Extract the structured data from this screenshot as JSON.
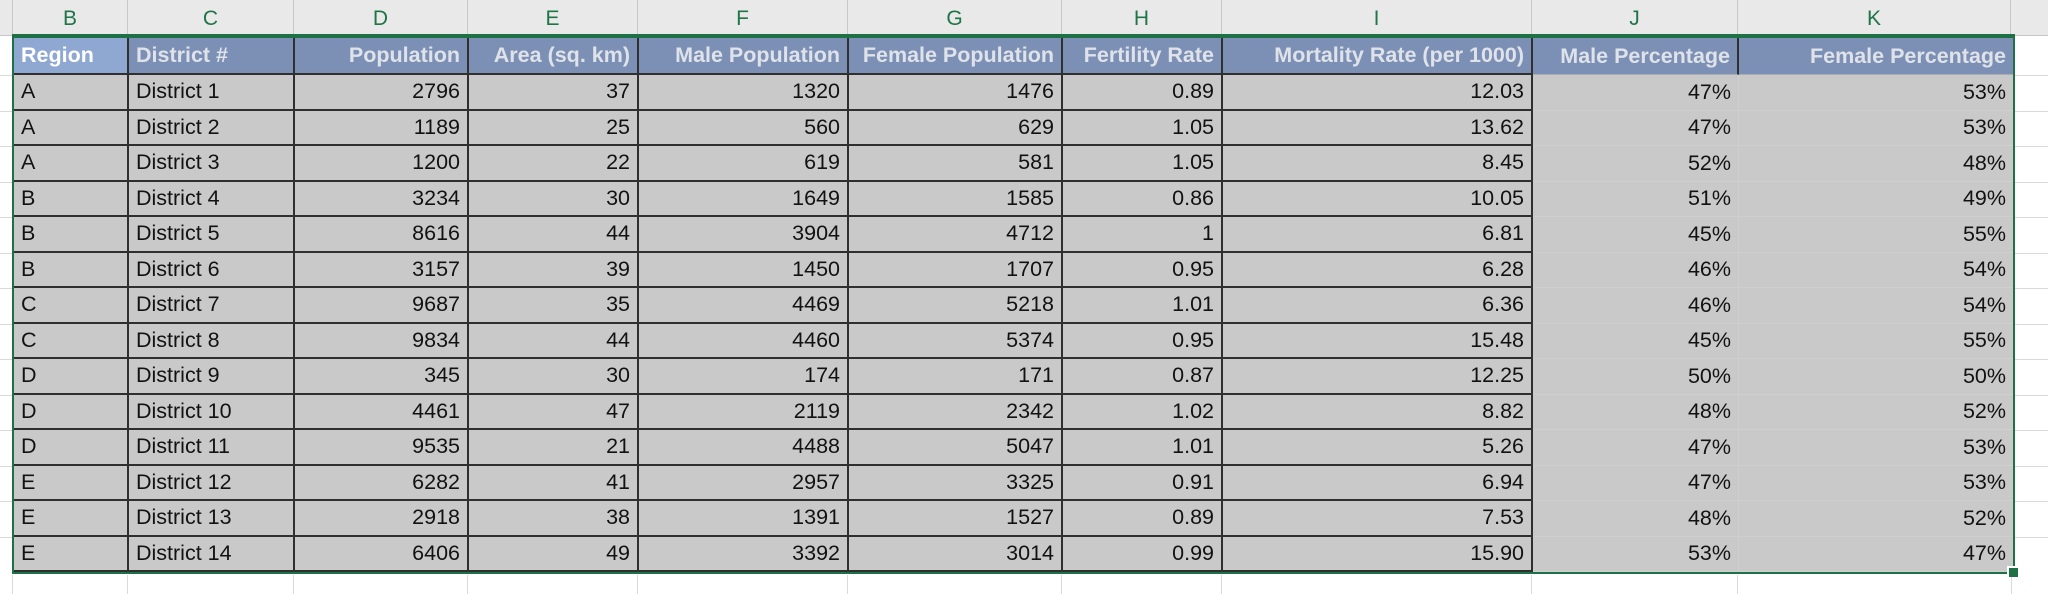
{
  "column_letters": [
    "B",
    "C",
    "D",
    "E",
    "F",
    "G",
    "H",
    "I",
    "J",
    "K"
  ],
  "table": {
    "headers": [
      "Region",
      "District #",
      "Population",
      "Area (sq. km)",
      "Male Population",
      "Female Population",
      "Fertility Rate",
      "Mortality Rate (per 1000)",
      "Male Percentage",
      "Female Percentage"
    ],
    "rows": [
      [
        "A",
        "District 1",
        "2796",
        "37",
        "1320",
        "1476",
        "0.89",
        "12.03",
        "47%",
        "53%"
      ],
      [
        "A",
        "District 2",
        "1189",
        "25",
        "560",
        "629",
        "1.05",
        "13.62",
        "47%",
        "53%"
      ],
      [
        "A",
        "District 3",
        "1200",
        "22",
        "619",
        "581",
        "1.05",
        "8.45",
        "52%",
        "48%"
      ],
      [
        "B",
        "District 4",
        "3234",
        "30",
        "1649",
        "1585",
        "0.86",
        "10.05",
        "51%",
        "49%"
      ],
      [
        "B",
        "District 5",
        "8616",
        "44",
        "3904",
        "4712",
        "1",
        "6.81",
        "45%",
        "55%"
      ],
      [
        "B",
        "District 6",
        "3157",
        "39",
        "1450",
        "1707",
        "0.95",
        "6.28",
        "46%",
        "54%"
      ],
      [
        "C",
        "District 7",
        "9687",
        "35",
        "4469",
        "5218",
        "1.01",
        "6.36",
        "46%",
        "54%"
      ],
      [
        "C",
        "District 8",
        "9834",
        "44",
        "4460",
        "5374",
        "0.95",
        "15.48",
        "45%",
        "55%"
      ],
      [
        "D",
        "District 9",
        "345",
        "30",
        "174",
        "171",
        "0.87",
        "12.25",
        "50%",
        "50%"
      ],
      [
        "D",
        "District 10",
        "4461",
        "47",
        "2119",
        "2342",
        "1.02",
        "8.82",
        "48%",
        "52%"
      ],
      [
        "D",
        "District 11",
        "9535",
        "21",
        "4488",
        "5047",
        "1.01",
        "5.26",
        "47%",
        "53%"
      ],
      [
        "E",
        "District 12",
        "6282",
        "41",
        "2957",
        "3325",
        "0.91",
        "6.94",
        "47%",
        "53%"
      ],
      [
        "E",
        "District 13",
        "2918",
        "38",
        "1391",
        "1527",
        "0.89",
        "7.53",
        "48%",
        "52%"
      ],
      [
        "E",
        "District 14",
        "6406",
        "49",
        "3392",
        "3014",
        "0.99",
        "15.90",
        "53%",
        "47%"
      ]
    ]
  },
  "colors": {
    "selection_green": "#1E7145",
    "column_letter_green": "#1F7547",
    "header_fill": "#7C90B6",
    "active_cell_fill": "#8FA8D2",
    "selected_cell_fill": "#C9C9C9",
    "gridline_gray": "#D9D9D9",
    "dark_border": "#2F2F2F"
  }
}
